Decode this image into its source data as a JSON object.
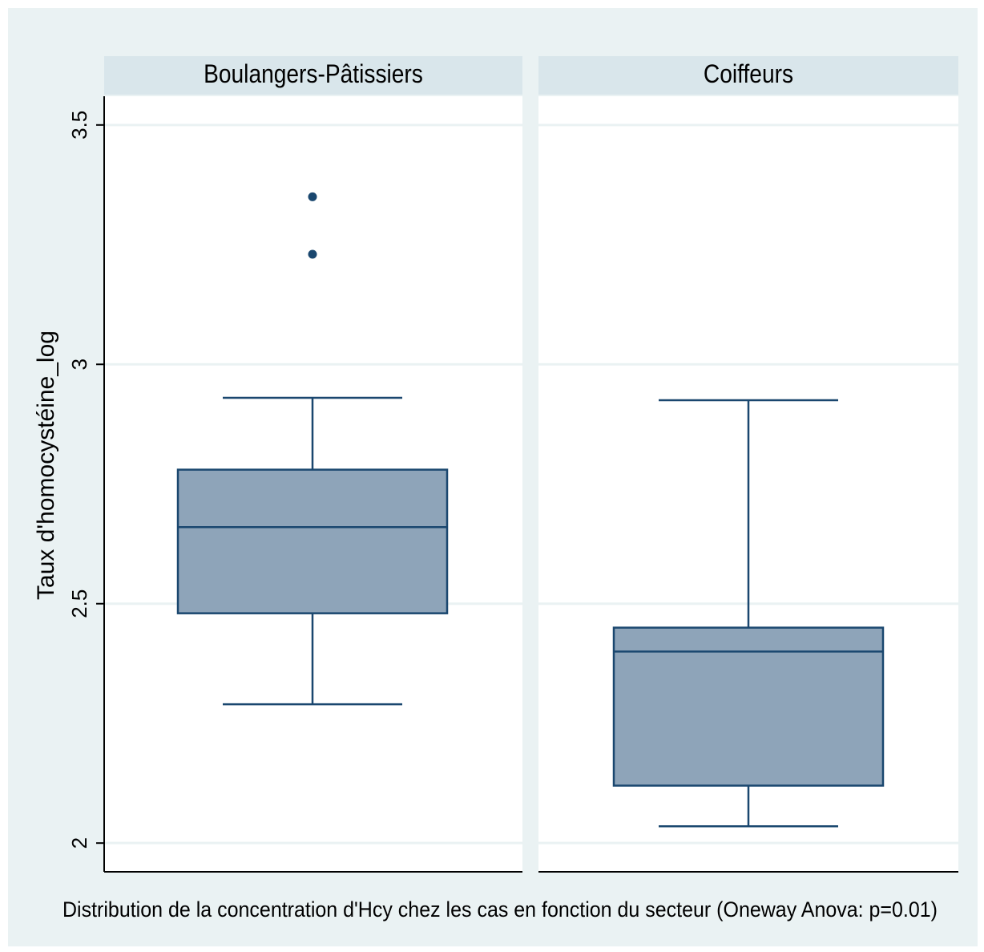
{
  "chart_data": {
    "type": "box",
    "ylabel": "Taux d'homocystéine_log",
    "note": "Distribution de la concentration d'Hcy chez les cas en fonction du secteur (Oneway Anova: p=0.01)",
    "ylim": [
      1.94,
      3.56
    ],
    "yticks": [
      {
        "value": 2,
        "label": "2"
      },
      {
        "value": 2.5,
        "label": "2.5"
      },
      {
        "value": 3,
        "label": "3"
      },
      {
        "value": 3.5,
        "label": "3.5"
      }
    ],
    "grid": true,
    "panels": [
      {
        "name": "Boulangers-Pâtissiers",
        "whisker_low": 2.29,
        "q1": 2.48,
        "median": 2.66,
        "q3": 2.78,
        "whisker_high": 2.93,
        "outliers": [
          3.23,
          3.35
        ]
      },
      {
        "name": "Coiffeurs",
        "whisker_low": 2.035,
        "q1": 2.12,
        "median": 2.4,
        "q3": 2.45,
        "whisker_high": 2.925,
        "outliers": []
      }
    ]
  },
  "colors": {
    "background": "#eaf2f3",
    "plot_region": "#ffffff",
    "strip": "#d9e6eb",
    "box_fill": "#8ea4b9",
    "box_line": "#1a476f",
    "grid": "#eaf2f3"
  }
}
